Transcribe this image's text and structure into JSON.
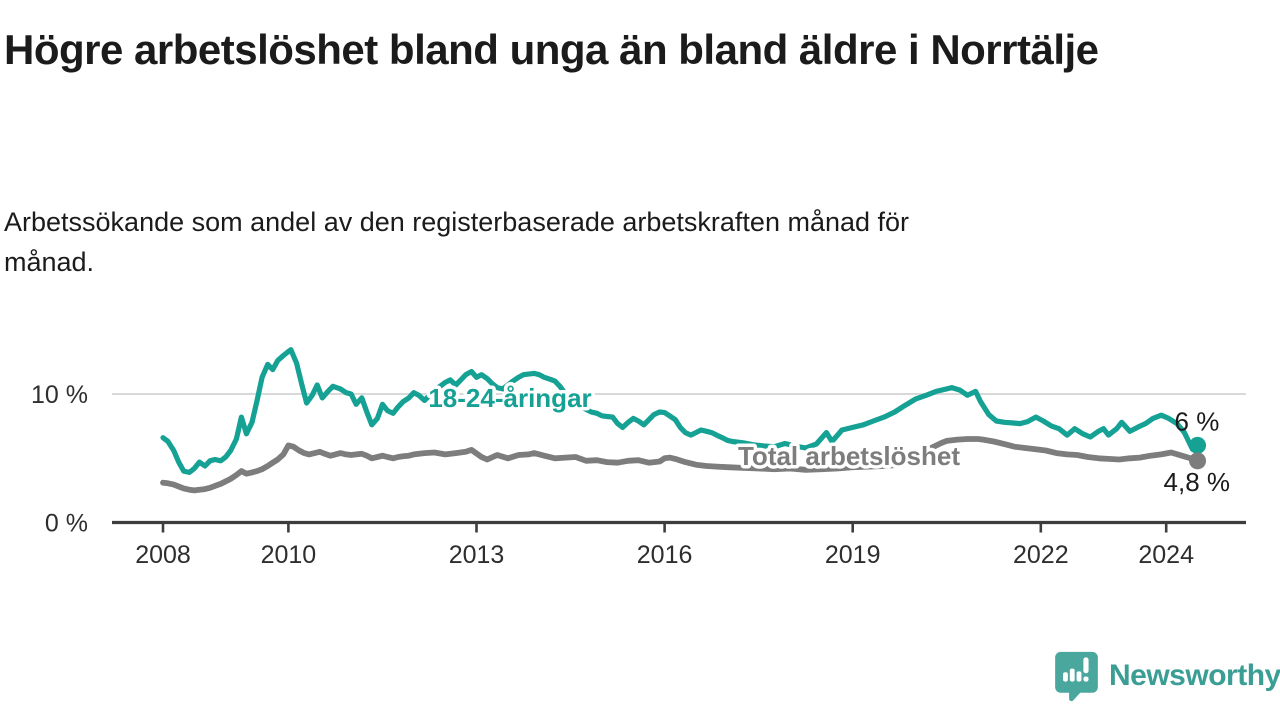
{
  "header": {
    "title": "Högre arbetslöshet bland unga än bland äldre i Norrtälje",
    "subtitle": "Arbetssökande som andel av den registerbaserade arbetskraften månad för månad."
  },
  "chart_data": {
    "type": "line",
    "title": "Högre arbetslöshet bland unga än bland äldre i Norrtälje",
    "subtitle": "Arbetssökande som andel av den registerbaserade arbetskraften månad för månad.",
    "unit": "percent",
    "x_axis": {
      "range": [
        2008,
        2024.6
      ],
      "ticks": [
        2008,
        2010,
        2013,
        2016,
        2019,
        2022,
        2024
      ]
    },
    "y_axis": {
      "range": [
        0,
        14
      ],
      "ticks": [
        {
          "value": 10,
          "label": "10 %"
        },
        {
          "value": 0,
          "label": "0 %"
        }
      ],
      "gridlines": [
        10
      ]
    },
    "legend_position": "inline labels on lines",
    "series": [
      {
        "name": "18-24-åringar",
        "color": "#16a195",
        "end_label": "6 %",
        "end_value": 6.0,
        "points": [
          [
            2008.0,
            6.6
          ],
          [
            2008.08,
            6.3
          ],
          [
            2008.17,
            5.6
          ],
          [
            2008.25,
            4.7
          ],
          [
            2008.33,
            4.0
          ],
          [
            2008.42,
            3.9
          ],
          [
            2008.5,
            4.2
          ],
          [
            2008.58,
            4.7
          ],
          [
            2008.67,
            4.4
          ],
          [
            2008.75,
            4.8
          ],
          [
            2008.83,
            4.9
          ],
          [
            2008.92,
            4.8
          ],
          [
            2009.0,
            5.1
          ],
          [
            2009.08,
            5.6
          ],
          [
            2009.17,
            6.5
          ],
          [
            2009.25,
            8.2
          ],
          [
            2009.33,
            6.9
          ],
          [
            2009.42,
            7.8
          ],
          [
            2009.5,
            9.5
          ],
          [
            2009.58,
            11.3
          ],
          [
            2009.67,
            12.3
          ],
          [
            2009.75,
            11.9
          ],
          [
            2009.83,
            12.6
          ],
          [
            2009.92,
            13.0
          ],
          [
            2010.0,
            13.3
          ],
          [
            2010.04,
            13.45
          ],
          [
            2010.13,
            12.4
          ],
          [
            2010.21,
            10.8
          ],
          [
            2010.29,
            9.3
          ],
          [
            2010.38,
            9.9
          ],
          [
            2010.46,
            10.7
          ],
          [
            2010.54,
            9.7
          ],
          [
            2010.63,
            10.2
          ],
          [
            2010.71,
            10.6
          ],
          [
            2010.83,
            10.4
          ],
          [
            2010.92,
            10.1
          ],
          [
            2011.0,
            10.0
          ],
          [
            2011.08,
            9.2
          ],
          [
            2011.17,
            9.7
          ],
          [
            2011.25,
            8.6
          ],
          [
            2011.33,
            7.6
          ],
          [
            2011.42,
            8.1
          ],
          [
            2011.5,
            9.2
          ],
          [
            2011.58,
            8.7
          ],
          [
            2011.67,
            8.5
          ],
          [
            2011.75,
            9.0
          ],
          [
            2011.83,
            9.4
          ],
          [
            2011.92,
            9.7
          ],
          [
            2012.0,
            10.1
          ],
          [
            2012.08,
            9.9
          ],
          [
            2012.17,
            9.5
          ],
          [
            2012.25,
            9.9
          ],
          [
            2012.33,
            10.3
          ],
          [
            2012.42,
            10.6
          ],
          [
            2012.5,
            10.9
          ],
          [
            2012.58,
            11.1
          ],
          [
            2012.67,
            10.7
          ],
          [
            2012.75,
            11.1
          ],
          [
            2012.83,
            11.5
          ],
          [
            2012.92,
            11.75
          ],
          [
            2013.0,
            11.3
          ],
          [
            2013.08,
            11.5
          ],
          [
            2013.17,
            11.2
          ],
          [
            2013.25,
            10.8
          ],
          [
            2013.33,
            10.5
          ],
          [
            2013.42,
            10.4
          ],
          [
            2013.5,
            10.7
          ],
          [
            2013.58,
            11.0
          ],
          [
            2013.67,
            11.3
          ],
          [
            2013.75,
            11.5
          ],
          [
            2013.83,
            11.55
          ],
          [
            2013.92,
            11.6
          ],
          [
            2014.0,
            11.5
          ],
          [
            2014.08,
            11.3
          ],
          [
            2014.17,
            11.15
          ],
          [
            2014.25,
            11.0
          ],
          [
            2014.33,
            10.6
          ],
          [
            2014.42,
            10.0
          ],
          [
            2014.5,
            9.7
          ],
          [
            2014.58,
            9.3
          ],
          [
            2014.67,
            9.0
          ],
          [
            2014.75,
            8.8
          ],
          [
            2014.83,
            8.6
          ],
          [
            2014.92,
            8.5
          ],
          [
            2015.0,
            8.3
          ],
          [
            2015.08,
            8.25
          ],
          [
            2015.17,
            8.2
          ],
          [
            2015.25,
            7.7
          ],
          [
            2015.33,
            7.4
          ],
          [
            2015.42,
            7.8
          ],
          [
            2015.5,
            8.1
          ],
          [
            2015.58,
            7.9
          ],
          [
            2015.67,
            7.6
          ],
          [
            2015.75,
            8.0
          ],
          [
            2015.83,
            8.4
          ],
          [
            2015.92,
            8.6
          ],
          [
            2016.0,
            8.55
          ],
          [
            2016.08,
            8.3
          ],
          [
            2016.17,
            8.0
          ],
          [
            2016.25,
            7.4
          ],
          [
            2016.33,
            7.0
          ],
          [
            2016.42,
            6.8
          ],
          [
            2016.5,
            7.0
          ],
          [
            2016.58,
            7.2
          ],
          [
            2016.67,
            7.1
          ],
          [
            2016.75,
            7.0
          ],
          [
            2016.83,
            6.8
          ],
          [
            2016.92,
            6.6
          ],
          [
            2017.0,
            6.4
          ],
          [
            2017.08,
            6.3
          ],
          [
            2017.25,
            6.2
          ],
          [
            2017.42,
            6.05
          ],
          [
            2017.58,
            5.95
          ],
          [
            2017.75,
            5.9
          ],
          [
            2017.92,
            6.15
          ],
          [
            2018.08,
            5.95
          ],
          [
            2018.25,
            5.8
          ],
          [
            2018.42,
            6.1
          ],
          [
            2018.58,
            7.0
          ],
          [
            2018.67,
            6.3
          ],
          [
            2018.83,
            7.2
          ],
          [
            2019.0,
            7.4
          ],
          [
            2019.17,
            7.6
          ],
          [
            2019.33,
            7.9
          ],
          [
            2019.5,
            8.2
          ],
          [
            2019.67,
            8.6
          ],
          [
            2019.83,
            9.1
          ],
          [
            2020.0,
            9.6
          ],
          [
            2020.17,
            9.9
          ],
          [
            2020.33,
            10.2
          ],
          [
            2020.5,
            10.4
          ],
          [
            2020.58,
            10.5
          ],
          [
            2020.71,
            10.3
          ],
          [
            2020.83,
            9.9
          ],
          [
            2020.96,
            10.2
          ],
          [
            2021.04,
            9.4
          ],
          [
            2021.17,
            8.4
          ],
          [
            2021.29,
            7.9
          ],
          [
            2021.42,
            7.8
          ],
          [
            2021.54,
            7.75
          ],
          [
            2021.67,
            7.7
          ],
          [
            2021.79,
            7.85
          ],
          [
            2021.92,
            8.2
          ],
          [
            2022.04,
            7.9
          ],
          [
            2022.17,
            7.5
          ],
          [
            2022.29,
            7.3
          ],
          [
            2022.42,
            6.8
          ],
          [
            2022.54,
            7.3
          ],
          [
            2022.67,
            6.9
          ],
          [
            2022.79,
            6.65
          ],
          [
            2022.92,
            7.1
          ],
          [
            2023.0,
            7.3
          ],
          [
            2023.08,
            6.8
          ],
          [
            2023.21,
            7.3
          ],
          [
            2023.29,
            7.8
          ],
          [
            2023.42,
            7.1
          ],
          [
            2023.54,
            7.4
          ],
          [
            2023.67,
            7.7
          ],
          [
            2023.79,
            8.1
          ],
          [
            2023.92,
            8.35
          ],
          [
            2024.04,
            8.1
          ],
          [
            2024.17,
            7.7
          ],
          [
            2024.29,
            7.0
          ],
          [
            2024.42,
            5.7
          ],
          [
            2024.5,
            6.0
          ]
        ]
      },
      {
        "name": "Total arbetslöshet",
        "color": "#7d7d7d",
        "end_label": "4,8 %",
        "end_value": 4.8,
        "points": [
          [
            2008.0,
            3.1
          ],
          [
            2008.08,
            3.05
          ],
          [
            2008.17,
            2.95
          ],
          [
            2008.25,
            2.8
          ],
          [
            2008.33,
            2.65
          ],
          [
            2008.42,
            2.55
          ],
          [
            2008.5,
            2.5
          ],
          [
            2008.58,
            2.55
          ],
          [
            2008.67,
            2.6
          ],
          [
            2008.75,
            2.7
          ],
          [
            2008.83,
            2.85
          ],
          [
            2008.92,
            3.0
          ],
          [
            2009.0,
            3.2
          ],
          [
            2009.08,
            3.4
          ],
          [
            2009.17,
            3.7
          ],
          [
            2009.25,
            4.0
          ],
          [
            2009.33,
            3.8
          ],
          [
            2009.42,
            3.9
          ],
          [
            2009.5,
            4.0
          ],
          [
            2009.58,
            4.15
          ],
          [
            2009.67,
            4.4
          ],
          [
            2009.75,
            4.65
          ],
          [
            2009.83,
            4.9
          ],
          [
            2009.92,
            5.3
          ],
          [
            2010.0,
            6.0
          ],
          [
            2010.08,
            5.9
          ],
          [
            2010.17,
            5.6
          ],
          [
            2010.25,
            5.4
          ],
          [
            2010.33,
            5.3
          ],
          [
            2010.42,
            5.4
          ],
          [
            2010.5,
            5.5
          ],
          [
            2010.58,
            5.35
          ],
          [
            2010.67,
            5.2
          ],
          [
            2010.75,
            5.3
          ],
          [
            2010.83,
            5.4
          ],
          [
            2010.92,
            5.3
          ],
          [
            2011.0,
            5.25
          ],
          [
            2011.08,
            5.3
          ],
          [
            2011.17,
            5.35
          ],
          [
            2011.25,
            5.2
          ],
          [
            2011.33,
            5.0
          ],
          [
            2011.42,
            5.1
          ],
          [
            2011.5,
            5.2
          ],
          [
            2011.58,
            5.1
          ],
          [
            2011.67,
            5.0
          ],
          [
            2011.75,
            5.1
          ],
          [
            2011.83,
            5.15
          ],
          [
            2011.92,
            5.2
          ],
          [
            2012.0,
            5.3
          ],
          [
            2012.17,
            5.4
          ],
          [
            2012.33,
            5.45
          ],
          [
            2012.5,
            5.3
          ],
          [
            2012.67,
            5.4
          ],
          [
            2012.83,
            5.5
          ],
          [
            2012.92,
            5.65
          ],
          [
            2013.08,
            5.1
          ],
          [
            2013.17,
            4.9
          ],
          [
            2013.33,
            5.25
          ],
          [
            2013.5,
            5.0
          ],
          [
            2013.67,
            5.25
          ],
          [
            2013.83,
            5.3
          ],
          [
            2013.92,
            5.4
          ],
          [
            2014.08,
            5.2
          ],
          [
            2014.25,
            5.0
          ],
          [
            2014.42,
            5.05
          ],
          [
            2014.58,
            5.1
          ],
          [
            2014.75,
            4.8
          ],
          [
            2014.92,
            4.85
          ],
          [
            2015.08,
            4.7
          ],
          [
            2015.25,
            4.65
          ],
          [
            2015.42,
            4.8
          ],
          [
            2015.58,
            4.85
          ],
          [
            2015.75,
            4.65
          ],
          [
            2015.92,
            4.75
          ],
          [
            2016.0,
            5.0
          ],
          [
            2016.08,
            5.05
          ],
          [
            2016.17,
            4.95
          ],
          [
            2016.33,
            4.7
          ],
          [
            2016.5,
            4.5
          ],
          [
            2016.67,
            4.4
          ],
          [
            2016.83,
            4.35
          ],
          [
            2017.0,
            4.3
          ],
          [
            2017.25,
            4.25
          ],
          [
            2017.5,
            4.2
          ],
          [
            2017.75,
            4.15
          ],
          [
            2018.0,
            4.2
          ],
          [
            2018.25,
            4.1
          ],
          [
            2018.5,
            4.15
          ],
          [
            2018.75,
            4.2
          ],
          [
            2019.0,
            4.3
          ],
          [
            2019.25,
            4.35
          ],
          [
            2019.5,
            4.4
          ],
          [
            2019.75,
            4.5
          ],
          [
            2019.92,
            4.7
          ],
          [
            2020.08,
            5.1
          ],
          [
            2020.25,
            5.8
          ],
          [
            2020.42,
            6.2
          ],
          [
            2020.5,
            6.35
          ],
          [
            2020.67,
            6.45
          ],
          [
            2020.83,
            6.5
          ],
          [
            2021.0,
            6.5
          ],
          [
            2021.08,
            6.45
          ],
          [
            2021.25,
            6.3
          ],
          [
            2021.42,
            6.1
          ],
          [
            2021.58,
            5.9
          ],
          [
            2021.75,
            5.8
          ],
          [
            2021.92,
            5.7
          ],
          [
            2022.08,
            5.6
          ],
          [
            2022.25,
            5.4
          ],
          [
            2022.42,
            5.3
          ],
          [
            2022.58,
            5.25
          ],
          [
            2022.75,
            5.1
          ],
          [
            2022.92,
            5.0
          ],
          [
            2023.08,
            4.95
          ],
          [
            2023.25,
            4.9
          ],
          [
            2023.42,
            5.0
          ],
          [
            2023.58,
            5.05
          ],
          [
            2023.75,
            5.2
          ],
          [
            2023.92,
            5.3
          ],
          [
            2024.08,
            5.45
          ],
          [
            2024.25,
            5.2
          ],
          [
            2024.42,
            4.95
          ],
          [
            2024.5,
            4.8
          ]
        ]
      }
    ]
  },
  "branding": {
    "logo_text": "Newsworthy",
    "logo_text_color": "#3a9e95",
    "logo_icon": "speech-bubble-with-bar-chart-and-exclamation",
    "logo_icon_color": "#4aa79d"
  }
}
